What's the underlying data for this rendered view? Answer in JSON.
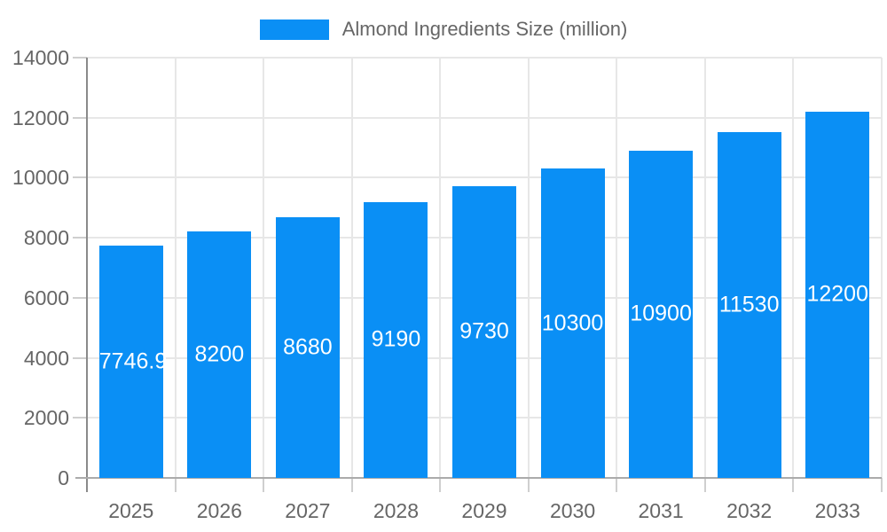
{
  "legend": {
    "label": "Almond Ingredients Size (million)"
  },
  "chart_data": {
    "type": "bar",
    "title": "",
    "series_name": "Almond Ingredients Size (million)",
    "categories": [
      "2025",
      "2026",
      "2027",
      "2028",
      "2029",
      "2030",
      "2031",
      "2032",
      "2033"
    ],
    "values": [
      7746.9,
      8200,
      8680,
      9190,
      9730,
      10300,
      10900,
      11530,
      12200
    ],
    "value_labels": [
      "7746.9",
      "8200",
      "8680",
      "9190",
      "9730",
      "10300",
      "10900",
      "11530",
      "12200"
    ],
    "xlabel": "",
    "ylabel": "",
    "ylim": [
      0,
      14000
    ],
    "yticks": [
      0,
      2000,
      4000,
      6000,
      8000,
      10000,
      12000,
      14000
    ],
    "grid": true,
    "legend_position": "top",
    "colors": {
      "bar": "#0A8FF5",
      "bar_label": "#FFFFFF",
      "axis_text": "#666666",
      "grid_line": "#E7E7E7",
      "y_axis_line": "#8A8A8A",
      "x_axis_line": "#ABABAB",
      "tick": "#CFCFCF"
    }
  }
}
